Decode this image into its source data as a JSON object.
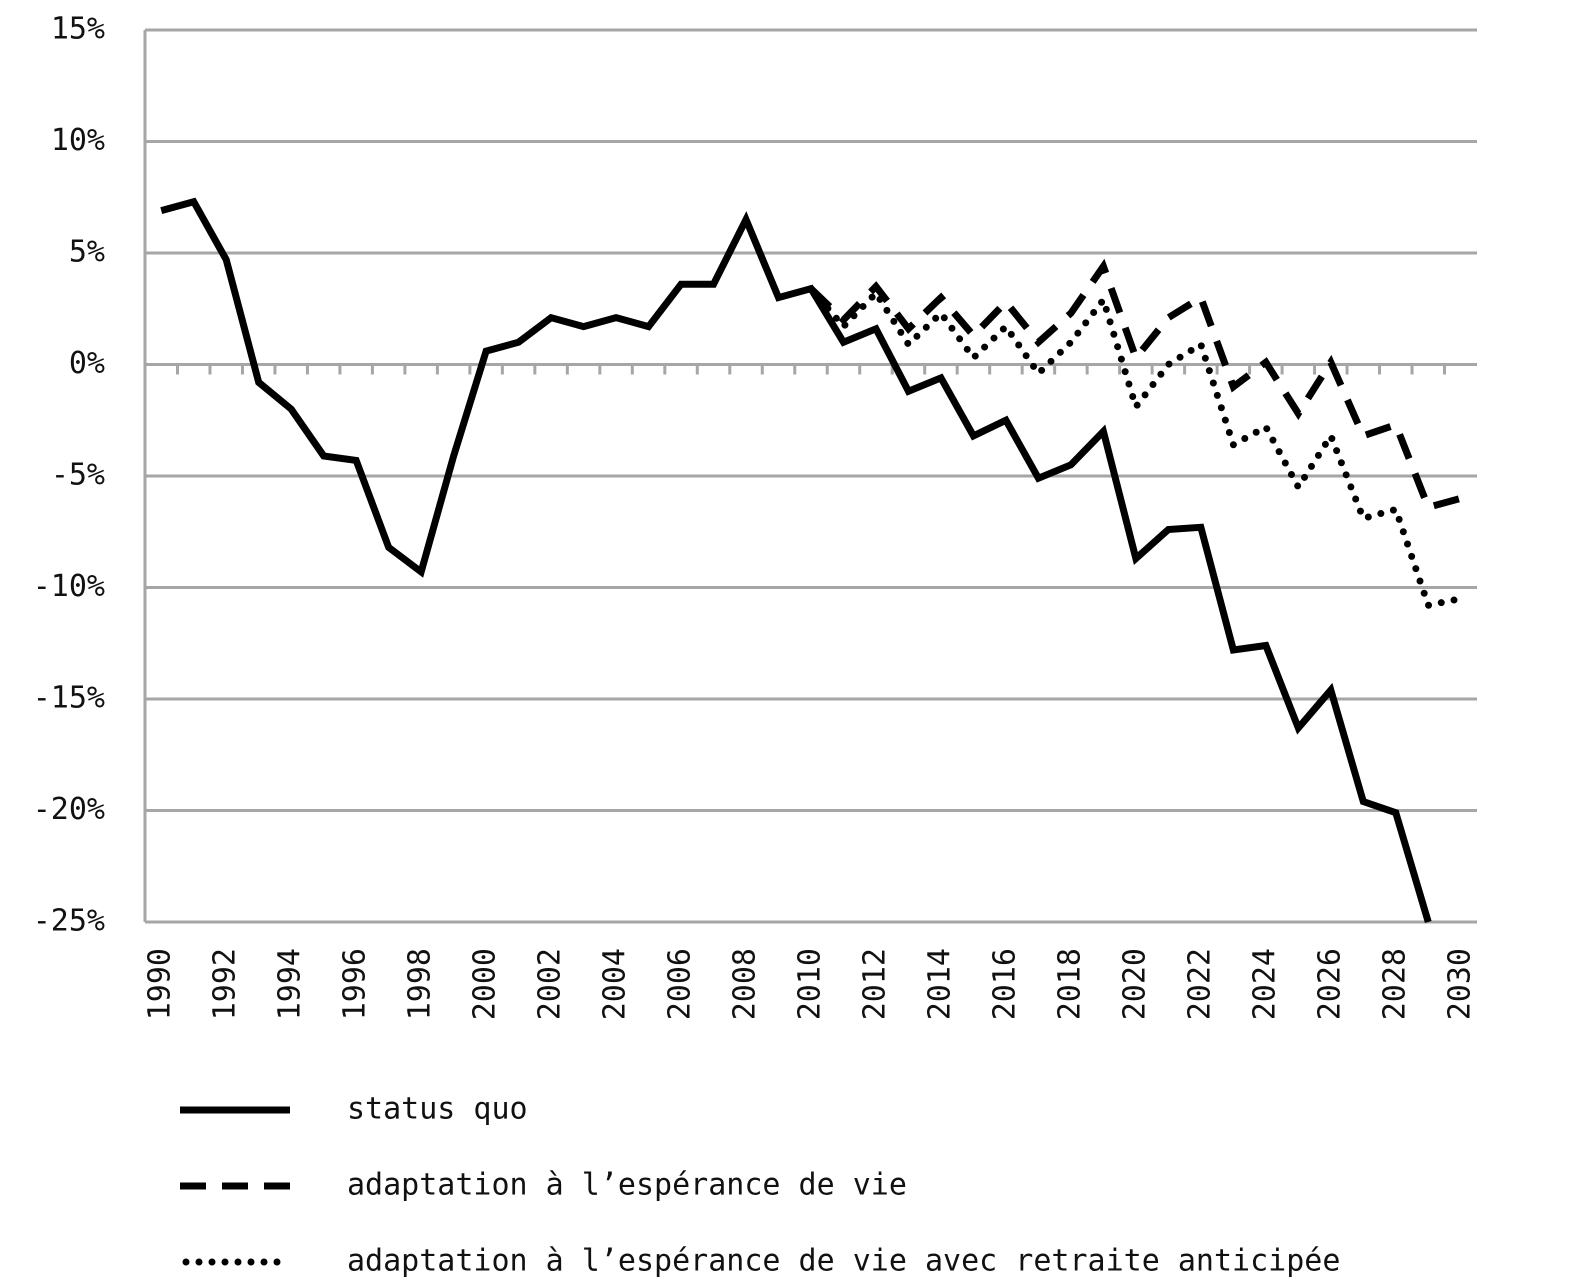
{
  "chart_data": {
    "type": "line",
    "x": [
      1990,
      1991,
      1992,
      1993,
      1994,
      1995,
      1996,
      1997,
      1998,
      1999,
      2000,
      2001,
      2002,
      2003,
      2004,
      2005,
      2006,
      2007,
      2008,
      2009,
      2010,
      2011,
      2012,
      2013,
      2014,
      2015,
      2016,
      2017,
      2018,
      2019,
      2020,
      2021,
      2022,
      2023,
      2024,
      2025,
      2026,
      2027,
      2028,
      2029,
      2030
    ],
    "series": [
      {
        "name": "status quo",
        "color": "#000000",
        "style": "solid",
        "values": [
          6.9,
          7.3,
          4.7,
          -0.8,
          -2.0,
          -4.1,
          -4.3,
          -8.2,
          -9.3,
          -4.1,
          0.6,
          1.0,
          2.1,
          1.7,
          2.1,
          1.7,
          3.6,
          3.6,
          6.5,
          3.0,
          3.4,
          1.0,
          1.6,
          -1.2,
          -0.6,
          -3.2,
          -2.5,
          -5.1,
          -4.5,
          -3.0,
          -8.7,
          -7.4,
          -7.3,
          -12.8,
          -12.6,
          -16.3,
          -14.6,
          -19.6,
          -20.1,
          -25.0,
          null
        ]
      },
      {
        "name": "adaptation à l’espérance de vie",
        "color": "#000000",
        "style": "dashed",
        "values": [
          null,
          null,
          null,
          null,
          null,
          null,
          null,
          null,
          null,
          null,
          null,
          null,
          null,
          null,
          null,
          null,
          null,
          null,
          null,
          null,
          3.4,
          2.0,
          3.5,
          1.6,
          3.0,
          1.3,
          2.8,
          1.0,
          2.3,
          4.4,
          0.3,
          2.1,
          3.0,
          -1.0,
          0.1,
          -2.2,
          0.1,
          -3.2,
          -2.7,
          -6.4,
          -6.0
        ]
      },
      {
        "name": "adaptation à l’espérance de vie avec retraite anticipée",
        "color": "#000000",
        "style": "dotted",
        "values": [
          null,
          null,
          null,
          null,
          null,
          null,
          null,
          null,
          null,
          null,
          null,
          null,
          null,
          null,
          null,
          null,
          null,
          null,
          null,
          null,
          3.4,
          1.7,
          3.2,
          0.9,
          2.3,
          0.3,
          1.7,
          -0.4,
          1.0,
          2.9,
          -1.9,
          0.0,
          0.9,
          -3.6,
          -2.8,
          -5.5,
          -3.2,
          -6.9,
          -6.5,
          -10.8,
          -10.5
        ]
      }
    ],
    "xlim": [
      1989.5,
      2030.5
    ],
    "xticks": [
      1990,
      1992,
      1994,
      1996,
      1998,
      2000,
      2002,
      2004,
      2006,
      2008,
      2010,
      2012,
      2014,
      2016,
      2018,
      2020,
      2022,
      2024,
      2026,
      2028,
      2030
    ],
    "ylim": [
      -25,
      15
    ],
    "yticks": [
      {
        "value": 15,
        "label": "15%"
      },
      {
        "value": 10,
        "label": "10%"
      },
      {
        "value": 5,
        "label": "5%"
      },
      {
        "value": 0,
        "label": "0%"
      },
      {
        "value": -5,
        "label": "-5%"
      },
      {
        "value": -10,
        "label": "-10%"
      },
      {
        "value": -15,
        "label": "-15%"
      },
      {
        "value": -20,
        "label": "-20%"
      },
      {
        "value": -25,
        "label": "-25%"
      }
    ],
    "grid": true
  }
}
